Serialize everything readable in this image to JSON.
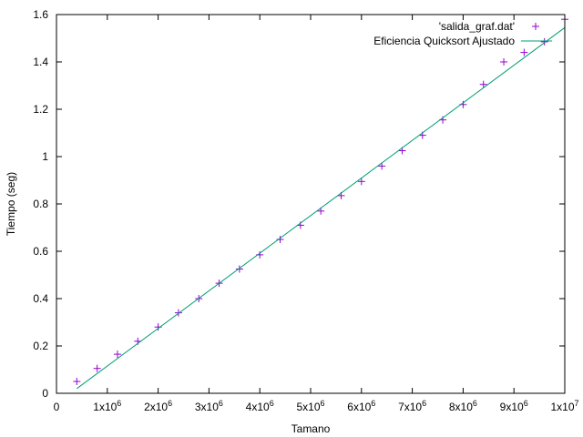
{
  "chart_data": {
    "type": "scatter",
    "xlabel": "Tamano",
    "ylabel": "Tiempo (seg)",
    "xlim": [
      0,
      10000000
    ],
    "ylim": [
      0,
      1.6
    ],
    "x_ticks": [
      0,
      1000000,
      2000000,
      3000000,
      4000000,
      5000000,
      6000000,
      7000000,
      8000000,
      9000000,
      10000000
    ],
    "x_tick_labels": [
      {
        "base": "0",
        "exp": ""
      },
      {
        "base": "1x10",
        "exp": "6"
      },
      {
        "base": "2x10",
        "exp": "6"
      },
      {
        "base": "3x10",
        "exp": "6"
      },
      {
        "base": "4x10",
        "exp": "6"
      },
      {
        "base": "5x10",
        "exp": "6"
      },
      {
        "base": "6x10",
        "exp": "6"
      },
      {
        "base": "7x10",
        "exp": "6"
      },
      {
        "base": "8x10",
        "exp": "6"
      },
      {
        "base": "9x10",
        "exp": "6"
      },
      {
        "base": "1x10",
        "exp": "7"
      }
    ],
    "y_ticks": [
      0,
      0.2,
      0.4,
      0.6,
      0.8,
      1.0,
      1.2,
      1.4,
      1.6
    ],
    "y_tick_labels": [
      "0",
      "0.2",
      "0.4",
      "0.6",
      "0.8",
      "1",
      "1.2",
      "1.4",
      "1.6"
    ],
    "legend_position": "top-right",
    "series": [
      {
        "name": "'salida_graf.dat'",
        "style": "points",
        "marker": "plus",
        "color": "#9400d3",
        "x": [
          400000,
          800000,
          1200000,
          1600000,
          2000000,
          2400000,
          2800000,
          3200000,
          3600000,
          4000000,
          4400000,
          4800000,
          5200000,
          5600000,
          6000000,
          6400000,
          6800000,
          7200000,
          7600000,
          8000000,
          8400000,
          8800000,
          9200000,
          9600000,
          10000000
        ],
        "y": [
          0.05,
          0.105,
          0.165,
          0.22,
          0.28,
          0.34,
          0.4,
          0.465,
          0.525,
          0.585,
          0.65,
          0.71,
          0.77,
          0.835,
          0.895,
          0.96,
          1.025,
          1.09,
          1.155,
          1.22,
          1.305,
          1.4,
          1.44,
          1.485,
          1.58
        ]
      },
      {
        "name": "Eficiencia Quicksort Ajustado",
        "style": "line",
        "color": "#009e73",
        "x": [
          400000,
          10000000
        ],
        "y": [
          0.02,
          1.545
        ]
      }
    ]
  }
}
